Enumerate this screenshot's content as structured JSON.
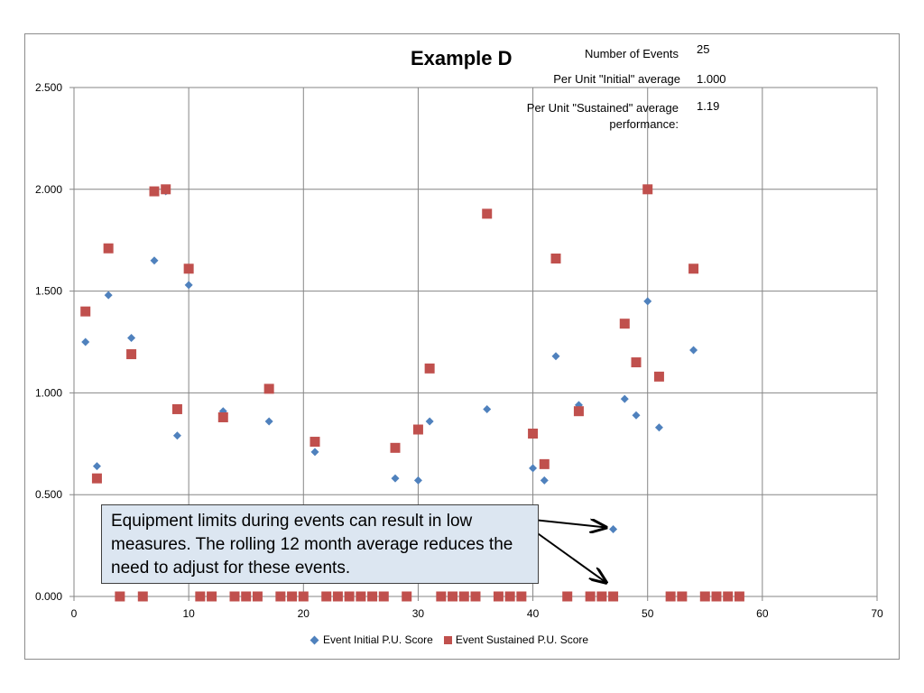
{
  "header": {
    "title": "Example D",
    "stats": [
      {
        "label": "Number of Events",
        "value": "25"
      },
      {
        "label": "Per Unit \"Initial\" average",
        "value": "1.000"
      },
      {
        "label": "Per Unit \"Sustained\" average performance:",
        "value": "1.19"
      }
    ]
  },
  "callout": {
    "text": "Equipment limits during events can result in low measures.  The rolling 12 month average reduces the need to adjust for these events."
  },
  "legend": {
    "initial": "Event Initial P.U. Score",
    "sustained": "Event Sustained P.U. Score"
  },
  "colors": {
    "initial": "#4f81bd",
    "sustained": "#c0504d",
    "callout_bg": "#dce6f1",
    "grid": "#868686"
  },
  "chart_data": {
    "type": "scatter",
    "xlim": [
      0,
      70
    ],
    "ylim": [
      0,
      2.5
    ],
    "x_ticks": [
      "0",
      "10",
      "20",
      "30",
      "40",
      "50",
      "60",
      "70"
    ],
    "y_ticks": [
      "0.000",
      "0.500",
      "1.000",
      "1.500",
      "2.000",
      "2.500"
    ],
    "grid": true,
    "legend_position": "bottom",
    "series": [
      {
        "name": "Event Initial P.U. Score",
        "marker": "diamond",
        "points": [
          [
            1,
            1.25
          ],
          [
            2,
            0.64
          ],
          [
            3,
            1.48
          ],
          [
            5,
            1.27
          ],
          [
            7,
            1.65
          ],
          [
            8,
            1.99
          ],
          [
            9,
            0.79
          ],
          [
            10,
            1.53
          ],
          [
            13,
            0.91
          ],
          [
            17,
            0.86
          ],
          [
            21,
            0.71
          ],
          [
            28,
            0.58
          ],
          [
            30,
            0.57
          ],
          [
            31,
            0.86
          ],
          [
            36,
            0.92
          ],
          [
            40,
            0.63
          ],
          [
            41,
            0.57
          ],
          [
            42,
            1.18
          ],
          [
            44,
            0.94
          ],
          [
            47,
            0.33
          ],
          [
            48,
            0.97
          ],
          [
            49,
            0.89
          ],
          [
            50,
            1.45
          ],
          [
            51,
            0.83
          ],
          [
            54,
            1.21
          ]
        ]
      },
      {
        "name": "Event Sustained P.U. Score",
        "marker": "square",
        "points": [
          [
            1,
            1.4
          ],
          [
            2,
            0.58
          ],
          [
            3,
            1.71
          ],
          [
            4,
            0
          ],
          [
            5,
            1.19
          ],
          [
            6,
            0
          ],
          [
            7,
            1.99
          ],
          [
            8,
            2.0
          ],
          [
            9,
            0.92
          ],
          [
            10,
            1.61
          ],
          [
            11,
            0
          ],
          [
            12,
            0
          ],
          [
            13,
            0.88
          ],
          [
            14,
            0
          ],
          [
            15,
            0
          ],
          [
            16,
            0
          ],
          [
            17,
            1.02
          ],
          [
            18,
            0
          ],
          [
            19,
            0
          ],
          [
            20,
            0
          ],
          [
            21,
            0.76
          ],
          [
            22,
            0
          ],
          [
            23,
            0
          ],
          [
            24,
            0
          ],
          [
            25,
            0
          ],
          [
            26,
            0
          ],
          [
            27,
            0
          ],
          [
            28,
            0.73
          ],
          [
            29,
            0
          ],
          [
            30,
            0.82
          ],
          [
            31,
            1.12
          ],
          [
            32,
            0
          ],
          [
            33,
            0
          ],
          [
            34,
            0
          ],
          [
            35,
            0
          ],
          [
            36,
            1.88
          ],
          [
            37,
            0
          ],
          [
            38,
            0
          ],
          [
            39,
            0
          ],
          [
            40,
            0.8
          ],
          [
            41,
            0.65
          ],
          [
            42,
            1.66
          ],
          [
            43,
            0
          ],
          [
            44,
            0.91
          ],
          [
            45,
            0
          ],
          [
            46,
            0
          ],
          [
            47,
            0
          ],
          [
            48,
            1.34
          ],
          [
            49,
            1.15
          ],
          [
            50,
            2.0
          ],
          [
            51,
            1.08
          ],
          [
            52,
            0
          ],
          [
            53,
            0
          ],
          [
            54,
            1.61
          ],
          [
            55,
            0
          ],
          [
            56,
            0
          ],
          [
            57,
            0
          ],
          [
            58,
            0
          ]
        ]
      }
    ],
    "annotation_arrow_targets": [
      [
        47,
        0.33
      ],
      [
        47,
        0.06
      ]
    ]
  }
}
